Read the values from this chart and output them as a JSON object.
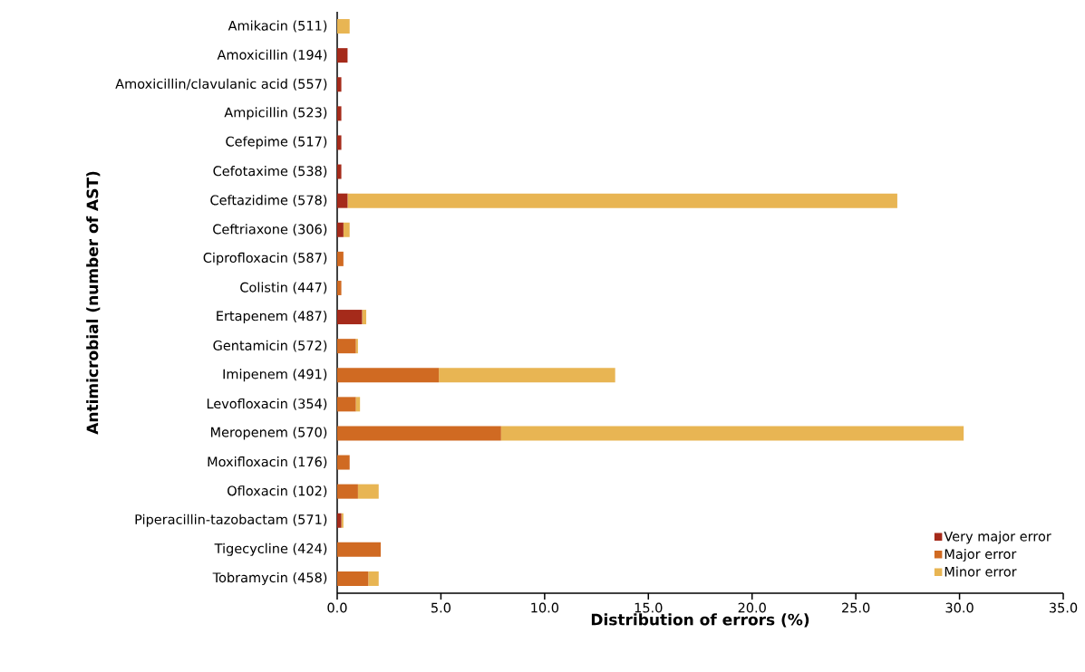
{
  "chart_data": {
    "type": "bar",
    "orientation": "horizontal",
    "stacked": true,
    "xlabel": "Distribution of errors (%)",
    "ylabel": "Antimicrobial (number of AST)",
    "categories": [
      "Amikacin (511)",
      "Amoxicillin (194)",
      "Amoxicillin/clavulanic acid (557)",
      "Ampicillin (523)",
      "Cefepime (517)",
      "Cefotaxime (538)",
      "Ceftazidime (578)",
      "Ceftriaxone (306)",
      "Ciprofloxacin (587)",
      "Colistin (447)",
      "Ertapenem (487)",
      "Gentamicin (572)",
      "Imipenem (491)",
      "Levofloxacin (354)",
      "Meropenem (570)",
      "Moxifloxacin (176)",
      "Ofloxacin (102)",
      "Piperacillin-tazobactam (571)",
      "Tigecycline (424)",
      "Tobramycin (458)"
    ],
    "series": [
      {
        "name": "Very major error",
        "color": "#a52a1a",
        "values": [
          0,
          0.5,
          0.2,
          0.2,
          0.2,
          0.2,
          0.5,
          0.3,
          0,
          0,
          1.2,
          0,
          0,
          0,
          0,
          0,
          0,
          0.2,
          0,
          0
        ]
      },
      {
        "name": "Major error",
        "color": "#d06a22",
        "values": [
          0,
          0,
          0,
          0,
          0,
          0,
          0,
          0,
          0.3,
          0.2,
          0,
          0.9,
          4.9,
          0.9,
          7.9,
          0.6,
          1.0,
          0,
          2.1,
          1.5
        ]
      },
      {
        "name": "Minor error",
        "color": "#e8b553",
        "values": [
          0.6,
          0,
          0,
          0,
          0,
          0,
          26.5,
          0.3,
          0,
          0,
          0.2,
          0.1,
          8.5,
          0.2,
          22.3,
          0,
          1.0,
          0.1,
          0,
          0.5
        ]
      }
    ],
    "xlim": [
      0,
      35
    ],
    "xticks": [
      {
        "value": 0,
        "label": "0.0"
      },
      {
        "value": 5,
        "label": "5.0"
      },
      {
        "value": 10,
        "label": "10.0"
      },
      {
        "value": 15,
        "label": "15.0"
      },
      {
        "value": 20,
        "label": "20.0"
      },
      {
        "value": 25,
        "label": "25.0"
      },
      {
        "value": 30,
        "label": "30.0"
      },
      {
        "value": 35,
        "label": "35.0"
      }
    ],
    "grid": false,
    "legend": "bottom right"
  }
}
